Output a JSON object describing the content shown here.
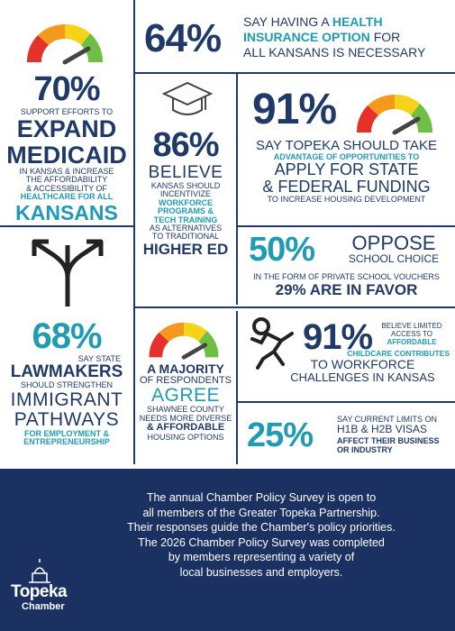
{
  "blocks": {
    "medicaid": {
      "value": "70%",
      "lines": [
        "SUPPORT EFFORTS TO",
        "EXPAND",
        "MEDICAID",
        "IN KANSAS & INCREASE",
        "THE AFFORDABILITY",
        "& ACCESSIBILITY OF",
        "HEALTHCARE FOR ALL",
        "KANSANS"
      ]
    },
    "insurance": {
      "value": "64%",
      "lines": [
        "SAY HAVING A",
        "HEALTH",
        "INSURANCE OPTION",
        "FOR",
        "ALL KANSANS IS NECESSARY"
      ]
    },
    "workforce": {
      "value": "86%",
      "lines": [
        "BELIEVE",
        "KANSAS SHOULD",
        "INCENTIVIZE",
        "WORKFORCE",
        "PROGRAMS &",
        "TECH TRAINING",
        "AS ALTERNATIVES",
        "TO TRADITIONAL",
        "HIGHER ED"
      ]
    },
    "housing_funding": {
      "value": "91%",
      "lines": [
        "SAY TOPEKA SHOULD TAKE",
        "ADVANTAGE OF OPPORTUNITIES TO",
        "APPLY FOR STATE",
        "& FEDERAL FUNDING",
        "TO INCREASE HOUSING DEVELOPMENT"
      ]
    },
    "school_choice": {
      "value": "50%",
      "lines": [
        "OPPOSE",
        "SCHOOL CHOICE",
        "IN THE FORM OF PRIVATE SCHOOL VOUCHERS",
        "29% ARE IN FAVOR"
      ]
    },
    "immigration": {
      "value": "68%",
      "lines": [
        "SAY STATE",
        "LAWMAKERS",
        "SHOULD STRENGTHEN",
        "IMMIGRANT",
        "PATHWAYS",
        "FOR EMPLOYMENT &",
        "ENTREPRENEURSHIP"
      ]
    },
    "housing_options": {
      "lines": [
        "A MAJORITY",
        "OF RESPONDENTS",
        "AGREE",
        "SHAWNEE COUNTY",
        "NEEDS MORE DIVERSE",
        "& AFFORDABLE",
        "HOUSING OPTIONS"
      ]
    },
    "childcare": {
      "value": "91%",
      "lines": [
        "BELIEVE LIMITED",
        "ACCESS TO",
        "AFFORDABLE",
        "CHILDCARE CONTRIBUTES",
        "TO WORKFORCE",
        "CHALLENGES IN KANSAS"
      ]
    },
    "visas": {
      "value": "25%",
      "lines": [
        "SAY CURRENT LIMITS ON",
        "H1B & H2B VISAS",
        "AFFECT THEIR BUSINESS",
        "OR INDUSTRY"
      ]
    }
  },
  "footer": {
    "lines": [
      "The annual Chamber Policy Survey is open to",
      "all members of the Greater Topeka Partnership.",
      "Their responses guide the Chamber's policy priorities.",
      "The 2026 Chamber Policy Survey was completed",
      "by members representing a variety of",
      "local businesses and employers."
    ],
    "logo": {
      "name": "Topeka",
      "sub": "Chamber"
    }
  }
}
